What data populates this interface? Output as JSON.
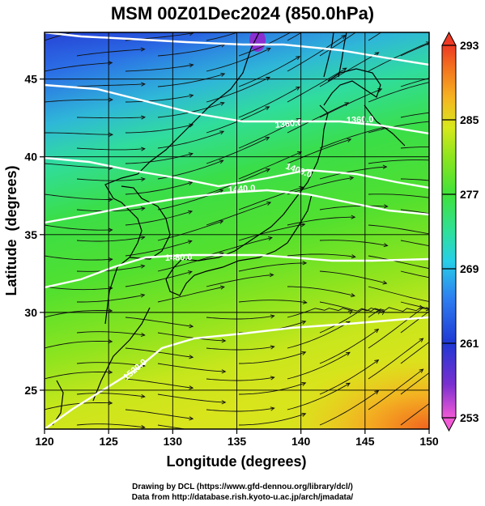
{
  "title": "MSM 00Z01Dec2024 (850.0hPa)",
  "axes": {
    "x": {
      "label": "Longitude (degrees)",
      "range": [
        120,
        150
      ],
      "ticks": [
        120,
        125,
        130,
        135,
        140,
        145,
        150
      ]
    },
    "y": {
      "label": "Latitude  (degrees)",
      "range": [
        22.5,
        48
      ],
      "ticks": [
        25,
        30,
        35,
        40,
        45
      ]
    }
  },
  "colorbar": {
    "ticks": [
      253,
      261,
      269,
      277,
      285,
      293
    ],
    "range": [
      253,
      293
    ],
    "colors": [
      "#f25ad6",
      "#7a2fd0",
      "#1f38d4",
      "#2e7ef0",
      "#27cfe8",
      "#2fe09a",
      "#3fe23a",
      "#8de51e",
      "#d8e81c",
      "#f6b321",
      "#f3721f",
      "#ee3a24"
    ]
  },
  "contour_labels": [
    "1360.0",
    "1360.0",
    "1400.0",
    "1440.0",
    "1480.0",
    "1520.0"
  ],
  "credits": {
    "line1": "Drawing by DCL (https://www.gfd-dennou.org/library/dcl/)",
    "line2": "Data from http://database.rish.kyoto-u.ac.jp/arch/jmadata/"
  }
}
